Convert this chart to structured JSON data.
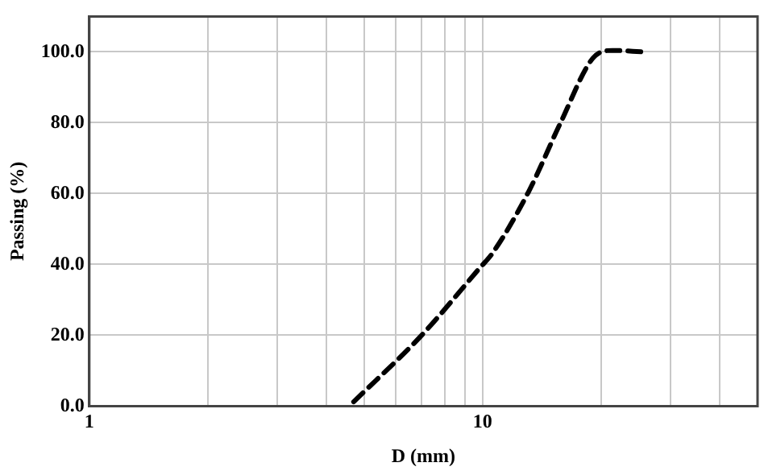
{
  "chart_data": {
    "type": "line",
    "xlabel": "D (mm)",
    "ylabel": "Passing (%)",
    "log": "x",
    "xlim": [
      1,
      50
    ],
    "xticks": [
      1,
      {
        "value": 2,
        "label": null
      },
      {
        "value": 3,
        "label": null
      },
      {
        "value": 4,
        "label": null
      },
      {
        "value": 5,
        "label": null
      },
      {
        "value": 6,
        "label": null
      },
      {
        "value": 7,
        "label": null
      },
      {
        "value": 8,
        "label": null
      },
      {
        "value": 9,
        "label": null
      },
      10,
      {
        "value": 20,
        "label": null
      },
      {
        "value": 30,
        "label": null
      },
      {
        "value": 40,
        "label": null
      },
      {
        "value": 50,
        "label": null
      }
    ],
    "ylim": [
      0,
      110
    ],
    "yticks": [
      {
        "value": 0,
        "label": "0.0"
      },
      {
        "value": 20,
        "label": "20.0"
      },
      {
        "value": 40,
        "label": "40.0"
      },
      {
        "value": 60,
        "label": "60.0"
      },
      {
        "value": 80,
        "label": "80.0"
      },
      {
        "value": 100,
        "label": "100.0"
      }
    ],
    "grid": true,
    "legend": false,
    "line_style": "dashed",
    "marker": "none",
    "series": [
      {
        "color": "#000000",
        "x": [
          4.7,
          7.0,
          9.8,
          10.6,
          13.1,
          15.8,
          19.1,
          21.4,
          25.5
        ],
        "values": [
          1.2,
          20,
          38.8,
          43.2,
          60.6,
          80.1,
          98.3,
          100.4,
          100
        ]
      }
    ]
  }
}
